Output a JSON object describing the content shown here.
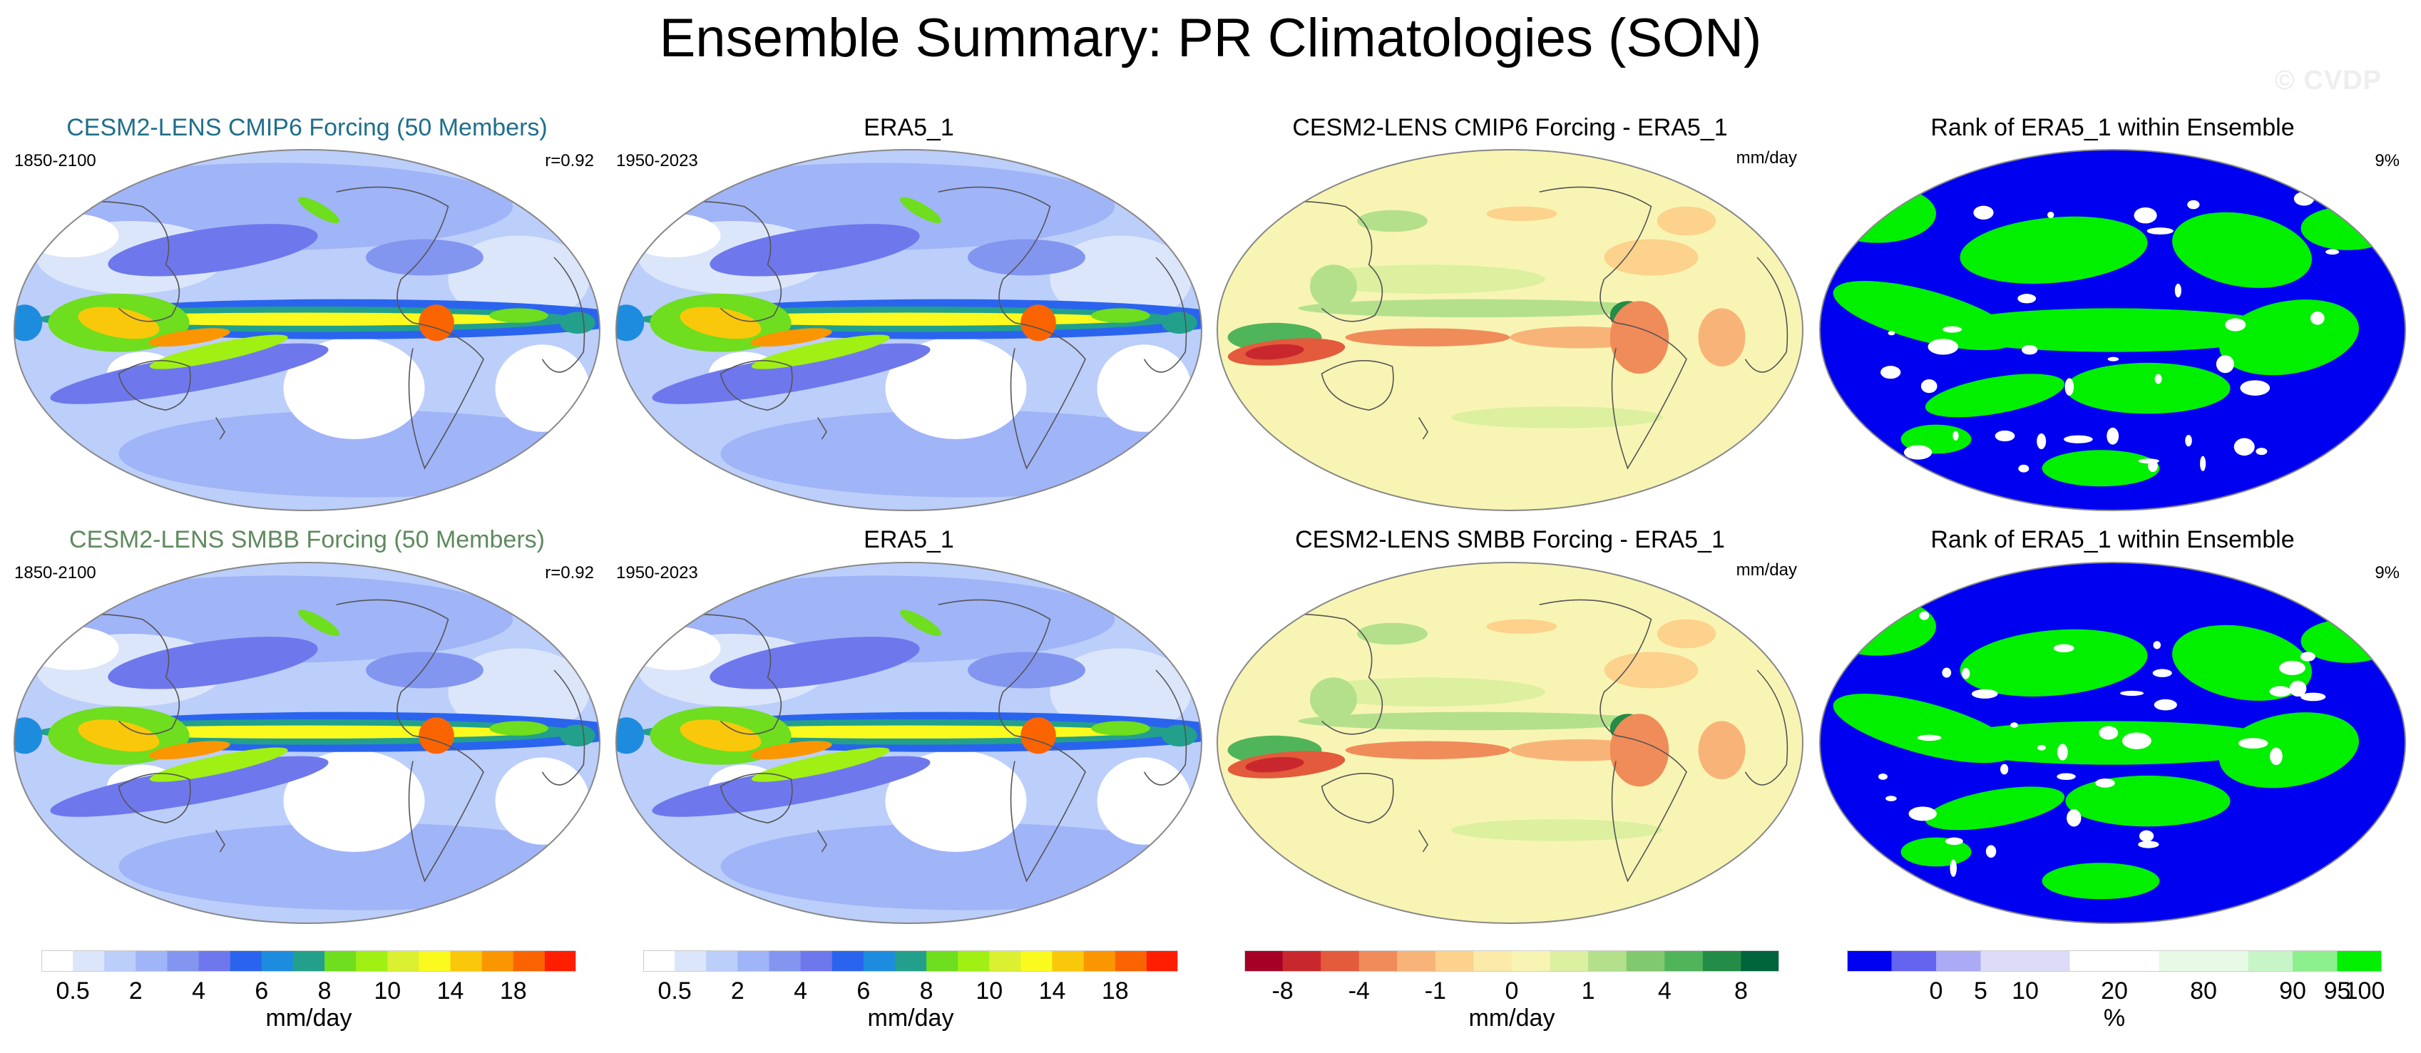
{
  "figure": {
    "title": "Ensemble Summary: PR Climatologies (SON)",
    "watermark": "© CVDP"
  },
  "colors": {
    "model_title_1": "#1f6f8b",
    "model_title_2": "#5e8a5e",
    "precip_scale": [
      "#ffffff",
      "#dce6fa",
      "#bccefa",
      "#a0b4f8",
      "#8296f0",
      "#6e78ec",
      "#2a64ee",
      "#1e8cde",
      "#22a08c",
      "#6ede1e",
      "#a0f014",
      "#dcf032",
      "#fafa1e",
      "#fac80a",
      "#fa9600",
      "#fa6400",
      "#ff1e00"
    ],
    "diff_scale": [
      "#a50026",
      "#c8282d",
      "#e35a3c",
      "#f08c5a",
      "#f8b478",
      "#fcd28c",
      "#fceba8",
      "#f8f5b4",
      "#dcf0a0",
      "#b4e08c",
      "#82c86e",
      "#50b45a",
      "#238c46",
      "#00643c"
    ],
    "rank_scale": [
      "#0000f0",
      "#6464f0",
      "#aaaaf5",
      "#dcdcf8",
      "#ffffff",
      "#e6fae6",
      "#c8f5c8",
      "#8cf08c",
      "#00f000"
    ],
    "map_outline": "#888888",
    "coast": "#555555"
  },
  "panels": [
    {
      "id": "p11",
      "title": "CESM2-LENS CMIP6 Forcing (50 Members)",
      "left_label": "1850-2100",
      "right_label": "r=0.92",
      "kind": "precip",
      "title_style": "model1"
    },
    {
      "id": "p12",
      "title": "ERA5_1",
      "left_label": "1950-2023",
      "right_label": "",
      "kind": "precip",
      "title_style": "plain"
    },
    {
      "id": "p13",
      "title": "CESM2-LENS CMIP6 Forcing - ERA5_1",
      "left_label": "",
      "right_label": "mm/day",
      "kind": "diff",
      "title_style": "plain"
    },
    {
      "id": "p14",
      "title": "Rank of ERA5_1 within Ensemble",
      "left_label": "",
      "right_label": "9%",
      "kind": "rank",
      "title_style": "plain"
    },
    {
      "id": "p21",
      "title": "CESM2-LENS SMBB Forcing (50 Members)",
      "left_label": "1850-2100",
      "right_label": "r=0.92",
      "kind": "precip",
      "title_style": "model2"
    },
    {
      "id": "p22",
      "title": "ERA5_1",
      "left_label": "1950-2023",
      "right_label": "",
      "kind": "precip",
      "title_style": "plain"
    },
    {
      "id": "p23",
      "title": "CESM2-LENS SMBB Forcing - ERA5_1",
      "left_label": "",
      "right_label": "mm/day",
      "kind": "diff",
      "title_style": "plain"
    },
    {
      "id": "p24",
      "title": "Rank of ERA5_1 within Ensemble",
      "left_label": "",
      "right_label": "9%",
      "kind": "rank",
      "title_style": "plain"
    }
  ],
  "colorbars": [
    {
      "id": "cb1",
      "kind": "precip",
      "unit": "mm/day",
      "labels": [
        "0.5",
        "2",
        "4",
        "6",
        "8",
        "10",
        "14",
        "18"
      ]
    },
    {
      "id": "cb2",
      "kind": "precip",
      "unit": "mm/day",
      "labels": [
        "0.5",
        "2",
        "4",
        "6",
        "8",
        "10",
        "14",
        "18"
      ]
    },
    {
      "id": "cb3",
      "kind": "diff",
      "unit": "mm/day",
      "labels": [
        "-8",
        "-4",
        "-1",
        "0",
        "1",
        "4",
        "8"
      ]
    },
    {
      "id": "cb4",
      "kind": "rank",
      "unit": "%",
      "labels": [
        "0",
        "5",
        "10",
        "20",
        "80",
        "90",
        "95",
        "100"
      ]
    }
  ],
  "chart_data": {
    "type": "heatmap",
    "title": "Ensemble Summary: PR Climatologies (SON)",
    "variable": "PR",
    "season": "SON",
    "projection": "global map (Robinson-like), Pacific-centered",
    "panels": [
      {
        "title": "CESM2-LENS CMIP6 Forcing (50 Members)",
        "period": "1850-2100",
        "pattern_correlation": 0.92,
        "units": "mm/day"
      },
      {
        "title": "ERA5_1",
        "period": "1950-2023",
        "units": "mm/day"
      },
      {
        "title": "CESM2-LENS CMIP6 Forcing - ERA5_1",
        "units": "mm/day"
      },
      {
        "title": "Rank of ERA5_1 within Ensemble",
        "summary_percent": 9,
        "units": "%"
      },
      {
        "title": "CESM2-LENS SMBB Forcing (50 Members)",
        "period": "1850-2100",
        "pattern_correlation": 0.92,
        "units": "mm/day"
      },
      {
        "title": "ERA5_1",
        "period": "1950-2023",
        "units": "mm/day"
      },
      {
        "title": "CESM2-LENS SMBB Forcing - ERA5_1",
        "units": "mm/day"
      },
      {
        "title": "Rank of ERA5_1 within Ensemble",
        "summary_percent": 9,
        "units": "%"
      }
    ],
    "colorbars": {
      "precip": {
        "tick_labels": [
          0.5,
          2,
          4,
          6,
          8,
          10,
          14,
          18
        ],
        "xlabel": "mm/day"
      },
      "difference": {
        "tick_labels": [
          -8,
          -4,
          -1,
          0,
          1,
          4,
          8
        ],
        "xlabel": "mm/day"
      },
      "rank": {
        "tick_labels": [
          0,
          5,
          10,
          20,
          80,
          90,
          95,
          100
        ],
        "xlabel": "%"
      }
    }
  }
}
